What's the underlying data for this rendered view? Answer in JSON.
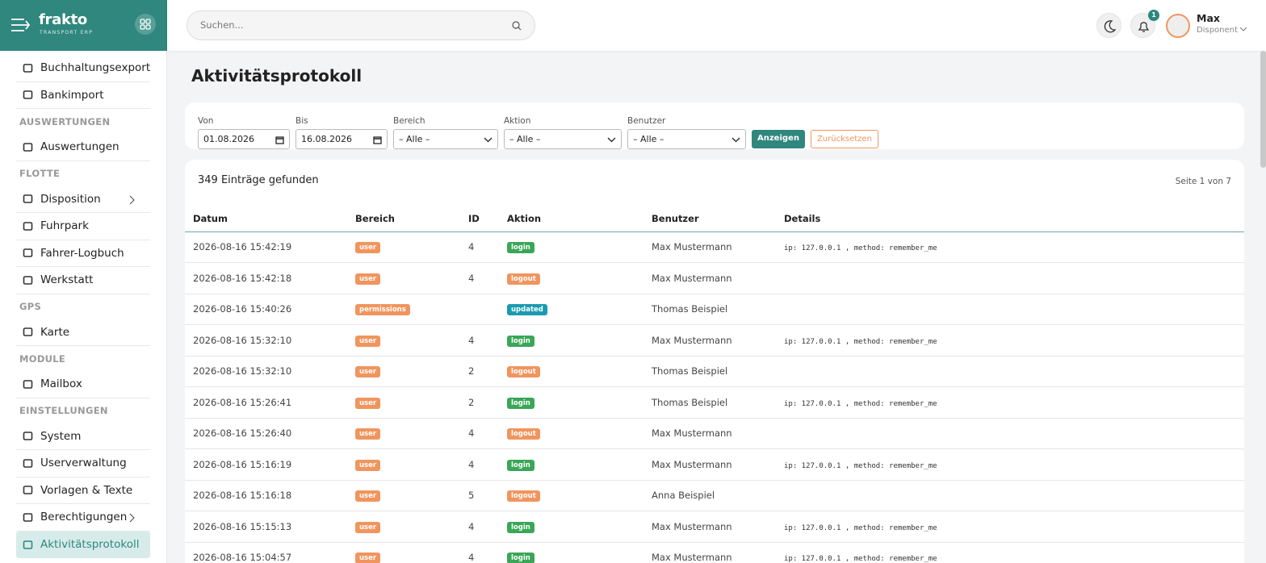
{
  "brand": {
    "name": "frakto",
    "tagline": "TRANSPORT ERP"
  },
  "search": {
    "placeholder": "Suchen..."
  },
  "notifications": {
    "count": 1
  },
  "user": {
    "name": "Max",
    "role": "Disponent"
  },
  "sidebar": {
    "groups": [
      {
        "items": [
          {
            "label": "Buchhaltungsexport"
          },
          {
            "label": "Bankimport"
          }
        ]
      },
      {
        "title": "AUSWERTUNGEN",
        "items": [
          {
            "label": "Auswertungen"
          }
        ]
      },
      {
        "title": "FLOTTE",
        "items": [
          {
            "label": "Disposition",
            "submenu": true
          },
          {
            "label": "Fuhrpark"
          },
          {
            "label": "Fahrer-Logbuch"
          },
          {
            "label": "Werkstatt"
          }
        ]
      },
      {
        "title": "GPS",
        "items": [
          {
            "label": "Karte"
          }
        ]
      },
      {
        "title": "MODULE",
        "items": [
          {
            "label": "Mailbox"
          }
        ]
      },
      {
        "title": "EINSTELLUNGEN",
        "items": [
          {
            "label": "System"
          },
          {
            "label": "Userverwaltung"
          },
          {
            "label": "Vorlagen & Texte"
          },
          {
            "label": "Berechtigungen",
            "submenu": true
          },
          {
            "label": "Aktivitätsprotokoll",
            "active": true
          }
        ]
      }
    ]
  },
  "page": {
    "title": "Aktivitätsprotokoll"
  },
  "filters": {
    "fields": [
      {
        "label": "Von",
        "value": "01.08.2026",
        "kind": "date"
      },
      {
        "label": "Bis",
        "value": "16.08.2026",
        "kind": "date"
      },
      {
        "label": "Bereich",
        "value": "– Alle –",
        "kind": "select"
      },
      {
        "label": "Aktion",
        "value": "– Alle –",
        "kind": "select"
      },
      {
        "label": "Benutzer",
        "value": "– Alle –",
        "kind": "select"
      }
    ],
    "submit": "Anzeigen",
    "reset": "Zurücksetzen"
  },
  "results": {
    "count_label": "349 Einträge gefunden",
    "page_label": "Seite 1 von 7"
  },
  "badge_colors": {
    "user": "#f0955e",
    "permissions": "#f0955e",
    "login": "#3aa657",
    "logout": "#f0955e",
    "updated": "#1a9bb0"
  },
  "table": {
    "columns": [
      "Datum",
      "Bereich",
      "ID",
      "Aktion",
      "Benutzer",
      "Details"
    ],
    "rows": [
      [
        "2026-08-16 15:42:19",
        "user",
        4,
        "login",
        "Max Mustermann",
        "ip: 127.0.0.1 , method: remember_me"
      ],
      [
        "2026-08-16 15:42:18",
        "user",
        4,
        "logout",
        "Max Mustermann",
        null
      ],
      [
        "2026-08-16 15:40:26",
        "permissions",
        null,
        "updated",
        "Thomas Beispiel",
        null
      ],
      [
        "2026-08-16 15:32:10",
        "user",
        4,
        "login",
        "Max Mustermann",
        "ip: 127.0.0.1 , method: remember_me"
      ],
      [
        "2026-08-16 15:32:10",
        "user",
        2,
        "logout",
        "Thomas Beispiel",
        null
      ],
      [
        "2026-08-16 15:26:41",
        "user",
        2,
        "login",
        "Thomas Beispiel",
        "ip: 127.0.0.1 , method: remember_me"
      ],
      [
        "2026-08-16 15:26:40",
        "user",
        4,
        "logout",
        "Max Mustermann",
        null
      ],
      [
        "2026-08-16 15:16:19",
        "user",
        4,
        "login",
        "Max Mustermann",
        "ip: 127.0.0.1 , method: remember_me"
      ],
      [
        "2026-08-16 15:16:18",
        "user",
        5,
        "logout",
        "Anna Beispiel",
        null
      ],
      [
        "2026-08-16 15:15:13",
        "user",
        4,
        "login",
        "Max Mustermann",
        "ip: 127.0.0.1 , method: remember_me"
      ],
      [
        "2026-08-16 15:04:57",
        "user",
        4,
        "login",
        "Max Mustermann",
        "ip: 127.0.0.1 , method: remember_me"
      ]
    ]
  }
}
